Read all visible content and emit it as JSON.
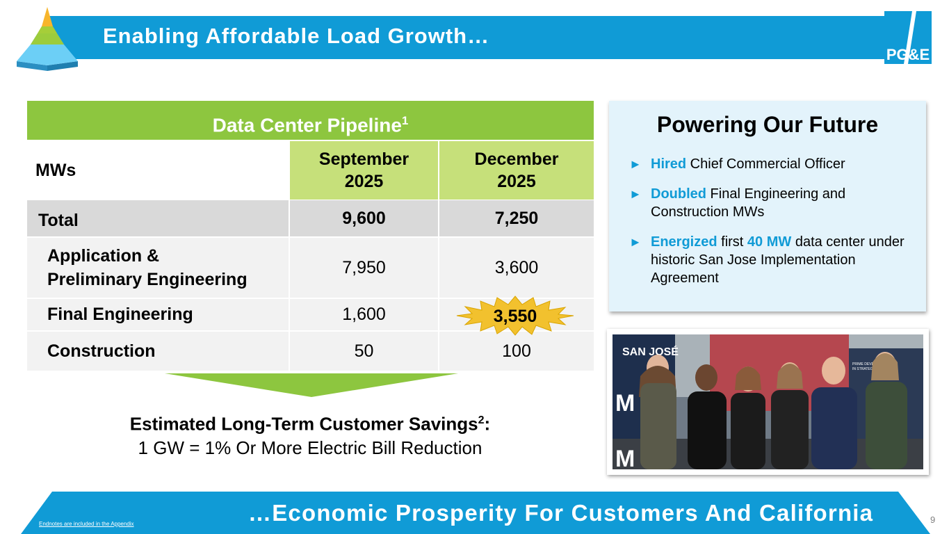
{
  "header": {
    "title": "Enabling Affordable Load Growth…"
  },
  "logo": {
    "text": "PG&E"
  },
  "pipeline": {
    "title": "Data Center Pipeline",
    "title_sup": "1",
    "col_label": "MWs",
    "col1": [
      "September",
      "2025"
    ],
    "col2": [
      "December",
      "2025"
    ],
    "rows": [
      {
        "label": "Total",
        "sep": "9,600",
        "dec": "7,250"
      },
      {
        "label_lines": [
          "Application &",
          "Preliminary Engineering"
        ],
        "sep": "7,950",
        "dec": "3,600"
      },
      {
        "label": "Final Engineering",
        "sep": "1,600",
        "dec": "3,550"
      },
      {
        "label": "Construction",
        "sep": "50",
        "dec": "100"
      }
    ]
  },
  "savings": {
    "line1": "Estimated Long-Term Customer Savings",
    "sup": "2",
    "colon": ":",
    "line2": "1 GW = 1% Or More Electric Bill Reduction"
  },
  "future": {
    "title": "Powering Our Future",
    "bullets": [
      {
        "hl": "Hired",
        "rest": " Chief Commercial Officer"
      },
      {
        "hl": "Doubled",
        "rest": " Final Engineering and Construction MWs"
      },
      {
        "hl": "Energized",
        "mid": " first ",
        "hl2": "40 MW",
        "rest": " data center under historic San Jose Implementation Agreement"
      }
    ]
  },
  "photo": {
    "sign_text": "SAN JOSÉ",
    "sign_letters": "M",
    "board_text": "PRIME DEVELOPMENT IN STRATEGIC LOCATION"
  },
  "footer": {
    "text": "…Economic Prosperity For Customers And California",
    "endnote": "Endnotes are included in the Appendix",
    "page": "9"
  },
  "colors": {
    "blue": "#109bd6",
    "green": "#8dc63f",
    "light_green": "#c6e07a",
    "starburst": "#f2c12e"
  }
}
